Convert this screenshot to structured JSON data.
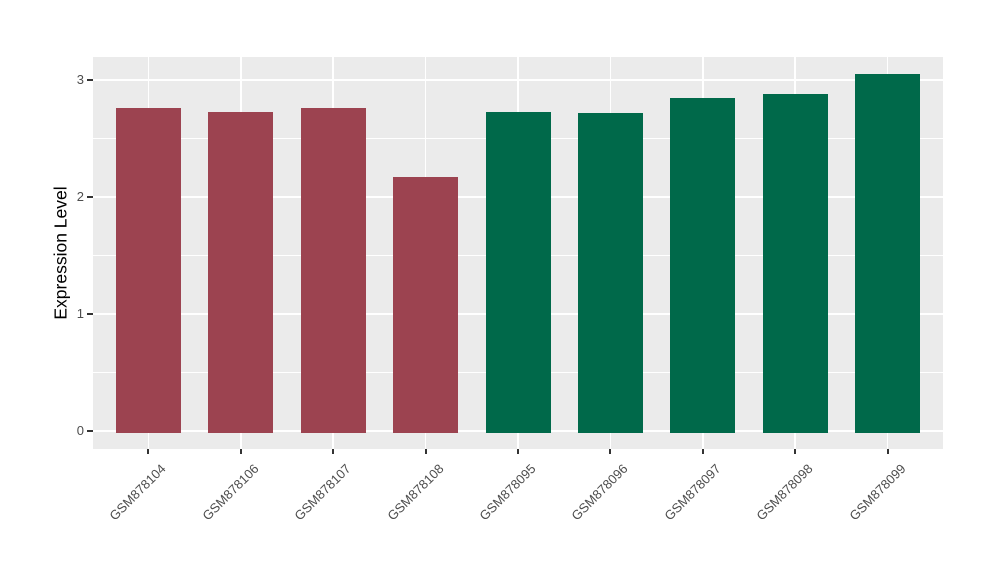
{
  "chart_data": {
    "type": "bar",
    "title": "",
    "xlabel": "",
    "ylabel": "Expression Level",
    "categories": [
      "GSM878104",
      "GSM878106",
      "GSM878107",
      "GSM878108",
      "GSM878095",
      "GSM878096",
      "GSM878097",
      "GSM878098",
      "GSM878099"
    ],
    "values": [
      2.76,
      2.73,
      2.76,
      2.17,
      2.73,
      2.72,
      2.85,
      2.88,
      3.05
    ],
    "bar_colors": [
      "#9C4350",
      "#9C4350",
      "#9C4350",
      "#9C4350",
      "#00694A",
      "#00694A",
      "#00694A",
      "#00694A",
      "#00694A"
    ],
    "group_colors": {
      "maroon": "#9C4350",
      "green": "#00694A"
    },
    "y_ticks": [
      0,
      1,
      2,
      3
    ],
    "y_tick_labels": [
      "0",
      "1",
      "2",
      "3"
    ],
    "y_minor_ticks": [
      0.5,
      1.5,
      2.5
    ],
    "ylim": [
      -0.15,
      3.21
    ],
    "x_label_angle": 45,
    "grid": true,
    "legend_position": "none",
    "panel_bg": "#EBEBEB",
    "grid_color": "#FFFFFF",
    "tick_color": "#333333",
    "axis_text_color": "#4D4D4D"
  }
}
